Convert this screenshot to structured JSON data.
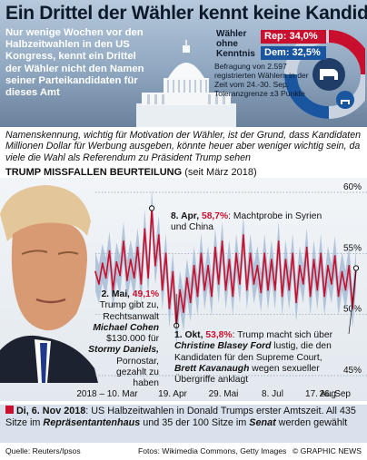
{
  "header": {
    "title": "Ein Drittel der Wähler kennt keine Kandidaten",
    "intro": "Nur wenige Wochen vor den Halbzeitwahlen in den US Kongress, kennt ein Drittel der Wähler nicht den Namen seiner Parteikandidaten für dieses Amt",
    "waehler_label": "Wähler ohne Kenntnis",
    "rep_label": "Rep: 34,0%",
    "dem_label": "Dem: 32,5%",
    "befragung": "Befragung von 2.597 registrierten Wählern in der Zeit vom 24.-30. Sep. Toleranzgrenze ±3 Punkte",
    "colors": {
      "rep": "#c8102e",
      "dem": "#1a55a0"
    }
  },
  "story": "Namenskennung, wichtig für Motivation der Wähler, ist der Grund, dass Kandidaten Millionen Dollar für Werbung ausgeben, könnte heuer aber weniger wichtig sein, da viele die Wahl als Referendum zu Präsident Trump sehen",
  "chart_title": {
    "bold": "TRUMP MISSFALLEN BEURTEILUNG",
    "rest": " (seit März 2018)"
  },
  "annotations": {
    "apr": {
      "date": "8. Apr,",
      "value": "58,7%",
      "text": ": Machtprobe in Syrien und China"
    },
    "mai": {
      "date": "2. Mai,",
      "value": "49,1%",
      "line1": "Trump gibt zu,",
      "line2": "Rechtsanwalt",
      "name1": "Michael Cohen",
      "line3": "$130.000 für",
      "name2": "Stormy Daniels,",
      "line4": "Pornostar,",
      "line5": "gezahlt zu",
      "line6": "haben"
    },
    "okt": {
      "date": "1. Okt,",
      "value": "53,8%",
      "text1": ": Trump macht sich über",
      "name1": "Christine Blasey Ford",
      "text2": " lustig, die den Kandidaten für den Supreme Court,",
      "name2": "Brett Kavanaugh",
      "text3": " wegen sexueller Übergriffe anklagt"
    }
  },
  "chart_data": {
    "type": "line",
    "series": [
      {
        "values": [
          53.5,
          52.5,
          54.2,
          53.0,
          55.2,
          52.0,
          54.3,
          53.2,
          56.0,
          52.8,
          54.5,
          53.0,
          55.5,
          52.5,
          57.0,
          53.0,
          58.7,
          54.0,
          56.5,
          52.0,
          55.0,
          50.5,
          53.5,
          49.1,
          52.0,
          50.2,
          53.0,
          51.0,
          54.0,
          51.5,
          55.0,
          52.0,
          54.0,
          51.5,
          55.5,
          52.5,
          56.0,
          52.0,
          54.5,
          51.5,
          55.0,
          52.5,
          56.5,
          52.0,
          55.0,
          52.5,
          54.0,
          51.8,
          55.0,
          52.0,
          54.5,
          52.0,
          56.0,
          51.5,
          54.5,
          52.0,
          55.0,
          51.0,
          54.0,
          52.5,
          55.5,
          51.5,
          54.5,
          52.0,
          55.0,
          51.5,
          54.0,
          52.5,
          54.8,
          51.5,
          53.5,
          52.0,
          54.0,
          50.5,
          53.8
        ]
      }
    ],
    "x_ticks": [
      "2018 – 10. Mar",
      "19. Apr",
      "29. Mai",
      "8. Jul",
      "17. Aug",
      "26. Sep"
    ],
    "y_ticks": [
      "60%",
      "55%",
      "50%",
      "45%"
    ],
    "ylim": [
      45,
      60
    ],
    "xlabel": "",
    "ylabel": "",
    "colors": {
      "line": "#c8102e",
      "band": "#9fb6d0"
    }
  },
  "footer": {
    "date_bold": "Di, 6. Nov 2018",
    "text1": ": US Halbzeitwahlen in Donald Trumps erster Amtszeit. All 435 Sitze im ",
    "house": "Repräsentantenhaus",
    "text2": " und 35 der 100 Sitze im ",
    "senate": "Senat",
    "text3": " werden gewählt",
    "source": "Quelle: Reuters/Ipsos",
    "credits": "Fotos: Wikimedia Commons, Getty Images",
    "brand": "© GRAPHIC NEWS"
  }
}
